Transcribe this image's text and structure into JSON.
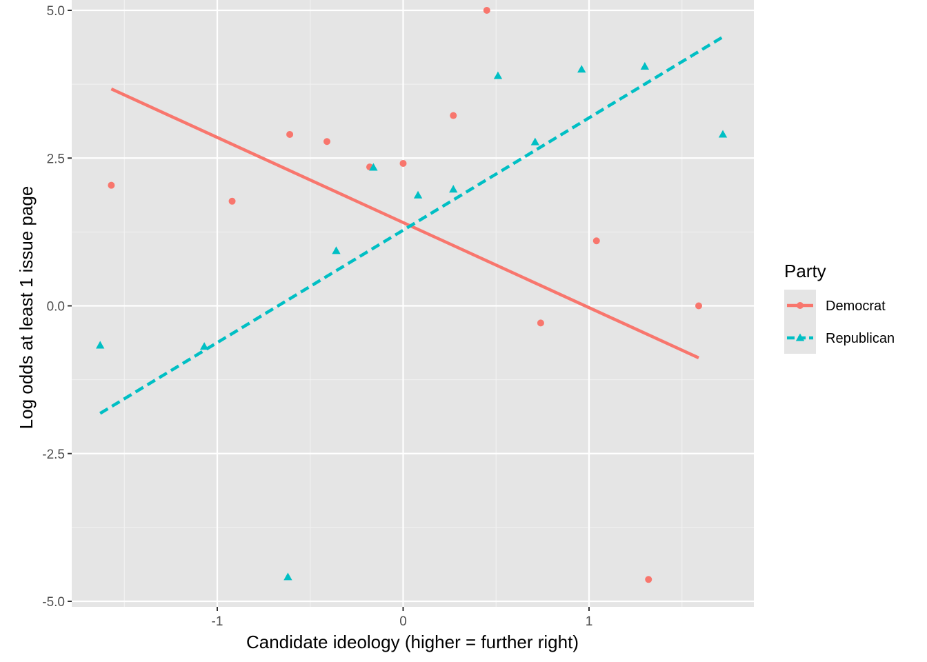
{
  "chart_data": {
    "type": "scatter",
    "xlabel": "Candidate ideology (higher = further right)",
    "ylabel": "Log odds at least 1 issue page",
    "xlim": [
      -1.85,
      1.85
    ],
    "ylim": [
      -5.0,
      5.0
    ],
    "x_ticks": [
      -1,
      0,
      1
    ],
    "x_tick_labels": [
      "-1",
      "0",
      "1"
    ],
    "y_ticks": [
      -5,
      -2.5,
      0,
      2.5,
      5
    ],
    "y_tick_labels": [
      "-5.0",
      "-2.5",
      "0.0",
      "2.5",
      "5.0"
    ],
    "grid": true,
    "background": "#e5e5e5",
    "legend": {
      "title": "Party",
      "position": "right"
    },
    "series": [
      {
        "name": "Democrat",
        "color": "#f8766d",
        "marker": "circle",
        "line_style": "solid",
        "points": [
          {
            "x": -1.57,
            "y": 2.04
          },
          {
            "x": -0.92,
            "y": 1.77
          },
          {
            "x": -0.61,
            "y": 2.9
          },
          {
            "x": -0.41,
            "y": 2.78
          },
          {
            "x": -0.18,
            "y": 2.35
          },
          {
            "x": 0.0,
            "y": 2.41
          },
          {
            "x": 0.27,
            "y": 3.22
          },
          {
            "x": 0.45,
            "y": 5.0
          },
          {
            "x": 0.74,
            "y": -0.29
          },
          {
            "x": 1.04,
            "y": 1.1
          },
          {
            "x": 1.32,
            "y": -4.63
          },
          {
            "x": 1.59,
            "y": 0.0
          }
        ],
        "fit": {
          "x": [
            -1.57,
            1.59
          ],
          "y": [
            3.67,
            -0.88
          ]
        }
      },
      {
        "name": "Republican",
        "color": "#00bfc4",
        "marker": "triangle",
        "line_style": "dashed",
        "points": [
          {
            "x": -1.63,
            "y": -0.67
          },
          {
            "x": -1.07,
            "y": -0.69
          },
          {
            "x": -0.62,
            "y": -4.59
          },
          {
            "x": -0.36,
            "y": 0.93
          },
          {
            "x": -0.16,
            "y": 2.34
          },
          {
            "x": 0.08,
            "y": 1.87
          },
          {
            "x": 0.27,
            "y": 1.97
          },
          {
            "x": 0.51,
            "y": 3.89
          },
          {
            "x": 0.71,
            "y": 2.77
          },
          {
            "x": 0.96,
            "y": 4.0
          },
          {
            "x": 1.3,
            "y": 4.05
          },
          {
            "x": 1.72,
            "y": 2.9
          }
        ],
        "fit": {
          "x": [
            -1.63,
            1.72
          ],
          "y": [
            -1.82,
            4.55
          ]
        }
      }
    ]
  }
}
